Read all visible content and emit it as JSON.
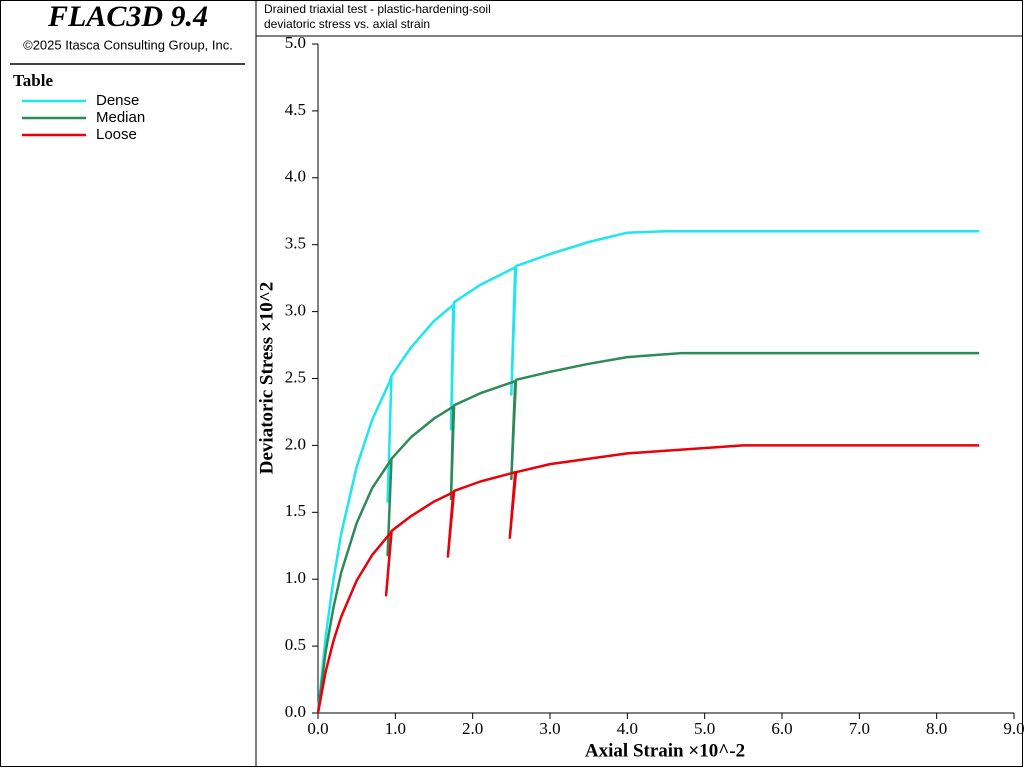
{
  "header": {
    "title": "FLAC3D 9.4",
    "copyright": "©2025 Itasca Consulting Group, Inc.",
    "legend_title": "Table"
  },
  "chart_data": {
    "type": "line",
    "title": "Drained triaxial test - plastic-hardening-soil",
    "subtitle": "deviatoric stress vs. axial strain",
    "x_label": "Axial Strain ×10^-2",
    "y_label": "Deviatoric Stress ×10^2",
    "xlim": [
      0,
      9
    ],
    "ylim": [
      0,
      5
    ],
    "xticks": [
      {
        "value": 0,
        "label": "0.0"
      },
      {
        "value": 1,
        "label": "1.0"
      },
      {
        "value": 2,
        "label": "2.0"
      },
      {
        "value": 3,
        "label": "3.0"
      },
      {
        "value": 4,
        "label": "4.0"
      },
      {
        "value": 5,
        "label": "5.0"
      },
      {
        "value": 6,
        "label": "6.0"
      },
      {
        "value": 7,
        "label": "7.0"
      },
      {
        "value": 8,
        "label": "8.0"
      },
      {
        "value": 9,
        "label": "9.0"
      }
    ],
    "yticks": [
      {
        "value": 0,
        "label": "0.0"
      },
      {
        "value": 0.5,
        "label": "0.5"
      },
      {
        "value": 1,
        "label": "1.0"
      },
      {
        "value": 1.5,
        "label": "1.5"
      },
      {
        "value": 2,
        "label": "2.0"
      },
      {
        "value": 2.5,
        "label": "2.5"
      },
      {
        "value": 3,
        "label": "3.0"
      },
      {
        "value": 3.5,
        "label": "3.5"
      },
      {
        "value": 4,
        "label": "4.0"
      },
      {
        "value": 4.5,
        "label": "4.5"
      },
      {
        "value": 5,
        "label": "5.0"
      }
    ],
    "series": [
      {
        "name": "Dense",
        "color": "#1ee6ee",
        "x": [
          0,
          0.1,
          0.2,
          0.3,
          0.5,
          0.7,
          0.93,
          0.95,
          0.9,
          0.95,
          1.2,
          1.5,
          1.75,
          1.72,
          1.76,
          2.1,
          2.55,
          2.5,
          2.56,
          3.0,
          3.5,
          4.0,
          4.5,
          8.55
        ],
        "values": [
          0,
          0.57,
          1.0,
          1.34,
          1.84,
          2.19,
          2.48,
          2.52,
          1.58,
          2.52,
          2.73,
          2.93,
          3.05,
          2.12,
          3.07,
          3.2,
          3.33,
          2.38,
          3.34,
          3.43,
          3.52,
          3.59,
          3.6,
          3.6
        ]
      },
      {
        "name": "Median",
        "color": "#2e8b57",
        "x": [
          0,
          0.1,
          0.2,
          0.3,
          0.5,
          0.7,
          0.93,
          0.95,
          0.9,
          0.95,
          1.2,
          1.5,
          1.75,
          1.72,
          1.76,
          2.1,
          2.55,
          2.5,
          2.56,
          3.0,
          3.5,
          4.0,
          4.7,
          8.55
        ],
        "values": [
          0,
          0.46,
          0.79,
          1.05,
          1.42,
          1.68,
          1.88,
          1.9,
          1.18,
          1.9,
          2.06,
          2.2,
          2.29,
          1.6,
          2.3,
          2.39,
          2.48,
          1.75,
          2.49,
          2.55,
          2.61,
          2.66,
          2.69,
          2.69
        ]
      },
      {
        "name": "Loose",
        "color": "#e8000b",
        "x": [
          0,
          0.1,
          0.2,
          0.3,
          0.5,
          0.7,
          0.93,
          0.95,
          0.88,
          0.95,
          1.2,
          1.5,
          1.75,
          1.68,
          1.76,
          2.1,
          2.55,
          2.48,
          2.56,
          3.0,
          3.5,
          4.0,
          5.5,
          8.55
        ],
        "values": [
          0,
          0.31,
          0.54,
          0.72,
          0.99,
          1.18,
          1.34,
          1.35,
          0.88,
          1.36,
          1.47,
          1.58,
          1.65,
          1.17,
          1.66,
          1.73,
          1.8,
          1.31,
          1.8,
          1.86,
          1.9,
          1.94,
          2.0,
          2.0
        ]
      }
    ]
  }
}
